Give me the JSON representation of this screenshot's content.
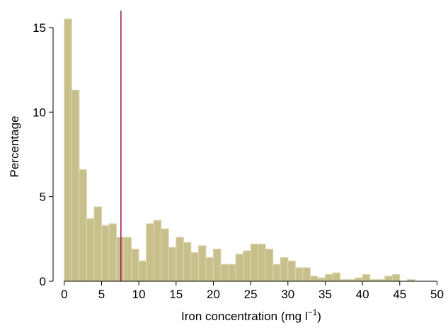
{
  "chart_data": {
    "type": "bar",
    "title": "",
    "xlabel": "Iron concentration (mg l",
    "xlabel_superscript": "−1",
    "xlabel_suffix": ")",
    "ylabel": "Percentage",
    "xlim": [
      -1.5,
      51
    ],
    "ylim": [
      0,
      16
    ],
    "x_ticks": [
      "0",
      "5",
      "10",
      "15",
      "20",
      "25",
      "30",
      "35",
      "40",
      "45",
      "50"
    ],
    "y_ticks": [
      "0",
      "5",
      "10",
      "15"
    ],
    "bin_width": 1,
    "bin_starts": [
      0,
      1,
      2,
      3,
      4,
      5,
      6,
      7,
      8,
      9,
      10,
      11,
      12,
      13,
      14,
      15,
      16,
      17,
      18,
      19,
      20,
      21,
      22,
      23,
      24,
      25,
      26,
      27,
      28,
      29,
      30,
      31,
      32,
      33,
      34,
      35,
      36,
      37,
      38,
      39,
      40,
      41,
      42,
      43,
      44,
      45,
      46,
      47,
      48,
      49
    ],
    "values": [
      15.5,
      11.3,
      6.6,
      3.7,
      4.4,
      3.3,
      3.4,
      2.6,
      2.6,
      1.9,
      1.2,
      3.4,
      3.6,
      3.1,
      2.0,
      2.6,
      2.3,
      1.7,
      2.1,
      1.4,
      1.9,
      1.0,
      1.0,
      1.6,
      1.8,
      2.2,
      2.2,
      1.9,
      1.0,
      1.4,
      1.2,
      0.8,
      0.8,
      0.3,
      0.2,
      0.4,
      0.5,
      0.1,
      0.1,
      0.2,
      0.4,
      0.1,
      0.1,
      0.3,
      0.4,
      0.0,
      0.1,
      0.0,
      0.0,
      0.0
    ],
    "reference_line_x": 7.6,
    "grid": false,
    "colors": {
      "bar_fill": "#c8c08c",
      "bar_stroke": "#dcd6ac",
      "reference_line": "#a0144b",
      "axis": "#000000"
    }
  }
}
